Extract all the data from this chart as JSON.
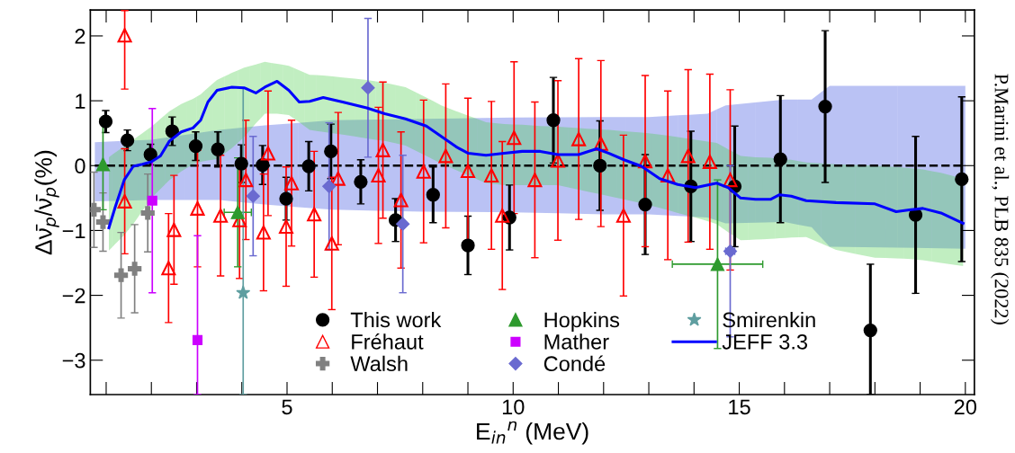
{
  "chart_data": {
    "type": "scatter",
    "xlabel": "E$_{in}$$^{n}$ (MeV)",
    "ylabel": "Δν̄$_{p}$/ν̄$_{p}$(%)",
    "xlim": [
      0.65,
      20.2
    ],
    "ylim": [
      -3.53,
      2.4
    ],
    "xticks": [
      {
        "value": 1,
        "label": null
      },
      {
        "value": 2,
        "label": null
      },
      {
        "value": 3,
        "label": null
      },
      {
        "value": 4,
        "label": null
      },
      5,
      {
        "value": 6,
        "label": null
      },
      {
        "value": 7,
        "label": null
      },
      {
        "value": 8,
        "label": null
      },
      {
        "value": 9,
        "label": null
      },
      10,
      {
        "value": 11,
        "label": null
      },
      {
        "value": 12,
        "label": null
      },
      {
        "value": 13,
        "label": null
      },
      {
        "value": 14,
        "label": null
      },
      15,
      {
        "value": 16,
        "label": null
      },
      {
        "value": 17,
        "label": null
      },
      {
        "value": 18,
        "label": null
      },
      {
        "value": 19,
        "label": null
      },
      20
    ],
    "yticks": [
      {
        "value": -3,
        "label": "−3"
      },
      {
        "value": -2,
        "label": "−2"
      },
      {
        "value": -1,
        "label": "−1"
      },
      0,
      1,
      2
    ],
    "grid": false,
    "legend": "bottom",
    "annotations": [
      "P.Marini et al., PLB 835 (2022)"
    ],
    "series": [
      {
        "type": "line",
        "marker": "none",
        "line_style": "dashed",
        "color": "#000000",
        "colors": [
          "#3a4fe0",
          "#3a4fe0",
          "#3a4fe0",
          "#3a4fe0",
          "#3a4fe0",
          "#3a4fe0",
          "#3a4fe0",
          "#3a4fe0",
          "#3a4fe0",
          "#3a4fe0",
          "#3a4fe0",
          "#3a4fe0",
          "#3a4fe0",
          "#3a4fe0",
          "#3a4fe0"
        ],
        "x": [
          0.75,
          2.0,
          3.5,
          4.5,
          6,
          8,
          10,
          12,
          13,
          14.3,
          14.7,
          16.0,
          16.6,
          17.0,
          20.0
        ],
        "values": [
          0,
          0,
          0,
          0,
          0,
          0,
          0,
          0,
          0,
          0,
          0,
          0,
          0,
          0,
          0
        ],
        "upper": [
          0.36,
          0.4,
          0.55,
          0.62,
          0.7,
          0.72,
          0.74,
          0.75,
          0.75,
          0.8,
          0.93,
          1.02,
          1.02,
          1.23,
          1.23
        ],
        "lower": [
          -0.55,
          -0.53,
          -0.53,
          -0.6,
          -0.68,
          -0.71,
          -0.72,
          -0.75,
          -0.75,
          -0.8,
          -0.89,
          -0.87,
          -0.95,
          -1.25,
          -1.28
        ]
      },
      {
        "name": "This work",
        "marker": "circle",
        "color": "#000000",
        "x": [
          0.99,
          1.47,
          1.98,
          2.46,
          2.98,
          3.47,
          3.99,
          4.46,
          4.98,
          5.48,
          5.97,
          6.63,
          7.4,
          8.23,
          9.0,
          9.92,
          10.89,
          11.92,
          12.92,
          13.93,
          14.9,
          15.91,
          16.9,
          17.9,
          18.9,
          19.92
        ],
        "values": [
          0.68,
          0.39,
          0.17,
          0.53,
          0.3,
          0.25,
          0.03,
          0.01,
          -0.51,
          -0.01,
          0.22,
          -0.25,
          -0.84,
          -0.45,
          -1.23,
          -0.8,
          0.7,
          0.0,
          -0.6,
          -0.32,
          -0.32,
          0.1,
          0.91,
          -2.54,
          -0.76,
          -0.21
        ],
        "errors": [
          0.17,
          0.16,
          0.16,
          0.22,
          0.22,
          0.27,
          0.29,
          0.3,
          0.33,
          0.38,
          0.42,
          0.34,
          0.33,
          0.43,
          0.45,
          0.5,
          0.66,
          0.69,
          0.77,
          0.85,
          0.93,
          0.98,
          1.17,
          [
            -3.53,
            -1.52
          ],
          1.21,
          1.27
        ]
      },
      {
        "name": "Fréhaut",
        "marker": "triangle-open",
        "color": "#ff0000",
        "x": [
          1.41,
          1.41,
          2.38,
          2.5,
          3.02,
          3.53,
          4.09,
          3.95,
          4.48,
          4.58,
          4.98,
          5.1,
          5.6,
          5.99,
          6.13,
          7.02,
          7.12,
          7.52,
          8.02,
          8.51,
          9.0,
          9.52,
          9.76,
          10.02,
          10.48,
          10.99,
          11.45,
          11.94,
          12.44,
          12.92,
          13.42,
          13.87,
          14.35,
          14.8
        ],
        "values": [
          2.01,
          -0.55,
          -1.58,
          -0.99,
          -0.66,
          -0.77,
          -0.22,
          -0.84,
          -1.03,
          0.19,
          -0.94,
          -0.27,
          -0.75,
          -1.2,
          -0.2,
          -0.15,
          0.24,
          -0.53,
          -0.09,
          0.15,
          -0.08,
          -0.15,
          -0.77,
          0.43,
          -0.22,
          0.08,
          0.41,
          0.34,
          -0.77,
          0.07,
          -0.15,
          0.15,
          0.06,
          -0.22
        ],
        "errors": [
          [
            1.18,
            2.39
          ],
          0.81,
          0.84,
          0.84,
          0.9,
          0.93,
          0.92,
          0.9,
          0.9,
          0.96,
          0.92,
          0.97,
          0.97,
          1.02,
          1.02,
          1.05,
          1.05,
          1.05,
          1.1,
          1.11,
          1.12,
          1.14,
          1.14,
          1.17,
          1.2,
          1.23,
          1.24,
          1.28,
          1.24,
          1.32,
          1.3,
          1.33,
          1.35,
          1.39
        ]
      },
      {
        "name": "Walsh",
        "marker": "cross",
        "color": "#808080",
        "x": [
          0.73,
          0.93,
          1.33,
          1.63,
          1.92
        ],
        "values": [
          -0.68,
          -0.87,
          -1.69,
          -1.59,
          -0.73
        ],
        "errors": [
          0.58,
          0.45,
          0.66,
          0.68,
          0.6
        ]
      },
      {
        "name": "Hopkins",
        "marker": "triangle",
        "color": "#2e9a2e",
        "x": [
          0.93,
          3.91,
          14.52
        ],
        "values": [
          0.02,
          -0.72,
          -1.52
        ],
        "errors": [
          0.7,
          0.84,
          1.3
        ],
        "xerrors": [
          null,
          0.3,
          1.0
        ]
      },
      {
        "name": "Mather",
        "marker": "square",
        "color": "#cc00ff",
        "x": [
          2.02,
          3.02
        ],
        "values": [
          -0.54,
          -2.69
        ],
        "errors": [
          1.42,
          [
            -3.53,
            -1.08
          ]
        ]
      },
      {
        "name": "Condé",
        "marker": "diamond",
        "color": "#6a6ad0",
        "x": [
          4.25,
          5.93,
          6.79,
          7.56,
          14.8
        ],
        "values": [
          -0.47,
          -0.32,
          1.2,
          -0.9,
          -1.32
        ],
        "errors": [
          0.92,
          0.98,
          1.07,
          1.06,
          1.32
        ],
        "xerrors": [
          null,
          null,
          null,
          null,
          0.1
        ]
      },
      {
        "name": "Smirenkin",
        "marker": "star",
        "color": "#5f9ea0",
        "x": [
          4.03
        ],
        "values": [
          -1.96
        ],
        "errors": [
          [
            -3.53,
            1.2
          ]
        ]
      },
      {
        "name": "JEFF 3.3",
        "type": "line",
        "marker": "none",
        "line_style": "solid",
        "color": "#0000ff",
        "colors": [
          "#4ccf4c",
          "#4ccf4c",
          "#4ccf4c",
          "#4ccf4c",
          "#4ccf4c",
          "#4ccf4c",
          "#4ccf4c",
          "#4ccf4c",
          "#4ccf4c",
          "#4ccf4c",
          "#4ccf4c",
          "#4ccf4c",
          "#4ccf4c",
          "#4ccf4c",
          "#4ccf4c",
          "#4ccf4c",
          "#4ccf4c",
          "#4ccf4c",
          "#4ccf4c",
          "#4ccf4c",
          "#4ccf4c",
          "#4ccf4c",
          "#4ccf4c",
          "#4ccf4c",
          "#4ccf4c",
          "#4ccf4c",
          "#4ccf4c",
          "#4ccf4c",
          "#4ccf4c",
          "#4ccf4c",
          "#4ccf4c",
          "#4ccf4c",
          "#4ccf4c",
          "#4ccf4c",
          "#4ccf4c",
          "#4ccf4c",
          "#4ccf4c",
          "#4ccf4c",
          "#4ccf4c",
          "#4ccf4c",
          "#4ccf4c",
          "#4ccf4c",
          "#4ccf4c",
          "#4ccf4c",
          "#4ccf4c",
          "#4ccf4c",
          "#4ccf4c",
          "#4ccf4c",
          "#4ccf4c",
          "#4ccf4c",
          "#4ccf4c",
          "#4ccf4c",
          "#4ccf4c",
          "#4ccf4c",
          "#4ccf4c",
          "#4ccf4c",
          "#4ccf4c",
          "#4ccf4c"
        ],
        "upper": [
          0.13,
          0.2,
          0.3,
          0.4,
          0.5,
          0.6,
          0.72,
          0.84,
          0.95,
          1.03,
          1.1,
          1.2,
          1.32,
          1.43,
          1.51,
          1.56,
          1.6,
          1.57,
          1.54,
          1.47,
          1.4,
          1.39,
          1.36,
          1.32,
          1.28,
          1.21,
          1.05,
          0.93,
          0.84,
          0.77,
          0.67,
          0.64,
          0.63,
          0.61,
          0.6,
          0.58,
          0.56,
          0.55,
          0.53,
          0.51,
          0.48,
          0.44,
          0.4,
          0.35,
          0.25,
          0.15,
          0.13,
          0.12,
          0.1,
          0.09,
          0.05,
          0.02,
          0.0,
          -0.02,
          -0.04,
          -0.06,
          -0.11,
          -0.2
        ],
        "lower": [
          -1.31,
          -1.21,
          -1.07,
          -0.9,
          -0.7,
          -0.5,
          -0.36,
          -0.22,
          -0.09,
          0.02,
          0.06,
          0.08,
          0.1,
          0.27,
          0.44,
          0.65,
          0.8,
          0.8,
          0.78,
          0.67,
          0.55,
          0.52,
          0.48,
          0.42,
          0.38,
          0.31,
          0.15,
          0.03,
          -0.07,
          -0.15,
          -0.27,
          -0.3,
          -0.3,
          -0.3,
          -0.3,
          -0.37,
          -0.43,
          -0.47,
          -0.52,
          -0.58,
          -0.65,
          -0.73,
          -0.8,
          -0.9,
          -1.03,
          -1.15,
          -1.14,
          -1.13,
          -1.12,
          -1.11,
          -1.1,
          -1.3,
          -1.42,
          -1.43,
          -1.44,
          -1.46,
          -1.5,
          -1.55
        ],
        "x": [
          1.06,
          1.2,
          1.4,
          1.6,
          1.8,
          2.0,
          2.2,
          2.4,
          2.66,
          2.92,
          3.09,
          3.25,
          3.45,
          3.78,
          4.05,
          4.31,
          4.51,
          4.78,
          5.04,
          5.27,
          5.5,
          5.8,
          6.23,
          6.76,
          7.16,
          7.62,
          8.08,
          8.41,
          8.74,
          9.01,
          9.4,
          9.8,
          10.2,
          10.6,
          10.99,
          11.45,
          11.85,
          12.12,
          12.45,
          12.84,
          13.24,
          13.64,
          14.03,
          14.5,
          14.76,
          15.03,
          15.36,
          15.69,
          15.89,
          16.15,
          16.48,
          17.14,
          18.0,
          18.47,
          18.8,
          19.06,
          19.46,
          19.95
        ],
        "values": [
          -0.96,
          -0.64,
          -0.22,
          -0.01,
          0.02,
          0.06,
          0.15,
          0.38,
          0.52,
          0.58,
          0.7,
          0.98,
          1.16,
          1.21,
          1.2,
          1.12,
          1.21,
          1.3,
          1.16,
          0.98,
          0.99,
          1.05,
          0.98,
          0.89,
          0.8,
          0.72,
          0.61,
          0.45,
          0.29,
          0.19,
          0.16,
          0.19,
          0.22,
          0.22,
          0.17,
          0.17,
          0.26,
          0.19,
          0.09,
          -0.01,
          -0.2,
          -0.29,
          -0.34,
          -0.27,
          -0.34,
          -0.5,
          -0.52,
          -0.52,
          -0.45,
          -0.47,
          -0.54,
          -0.57,
          -0.59,
          -0.71,
          -0.68,
          -0.66,
          -0.73,
          -0.89
        ]
      }
    ]
  }
}
